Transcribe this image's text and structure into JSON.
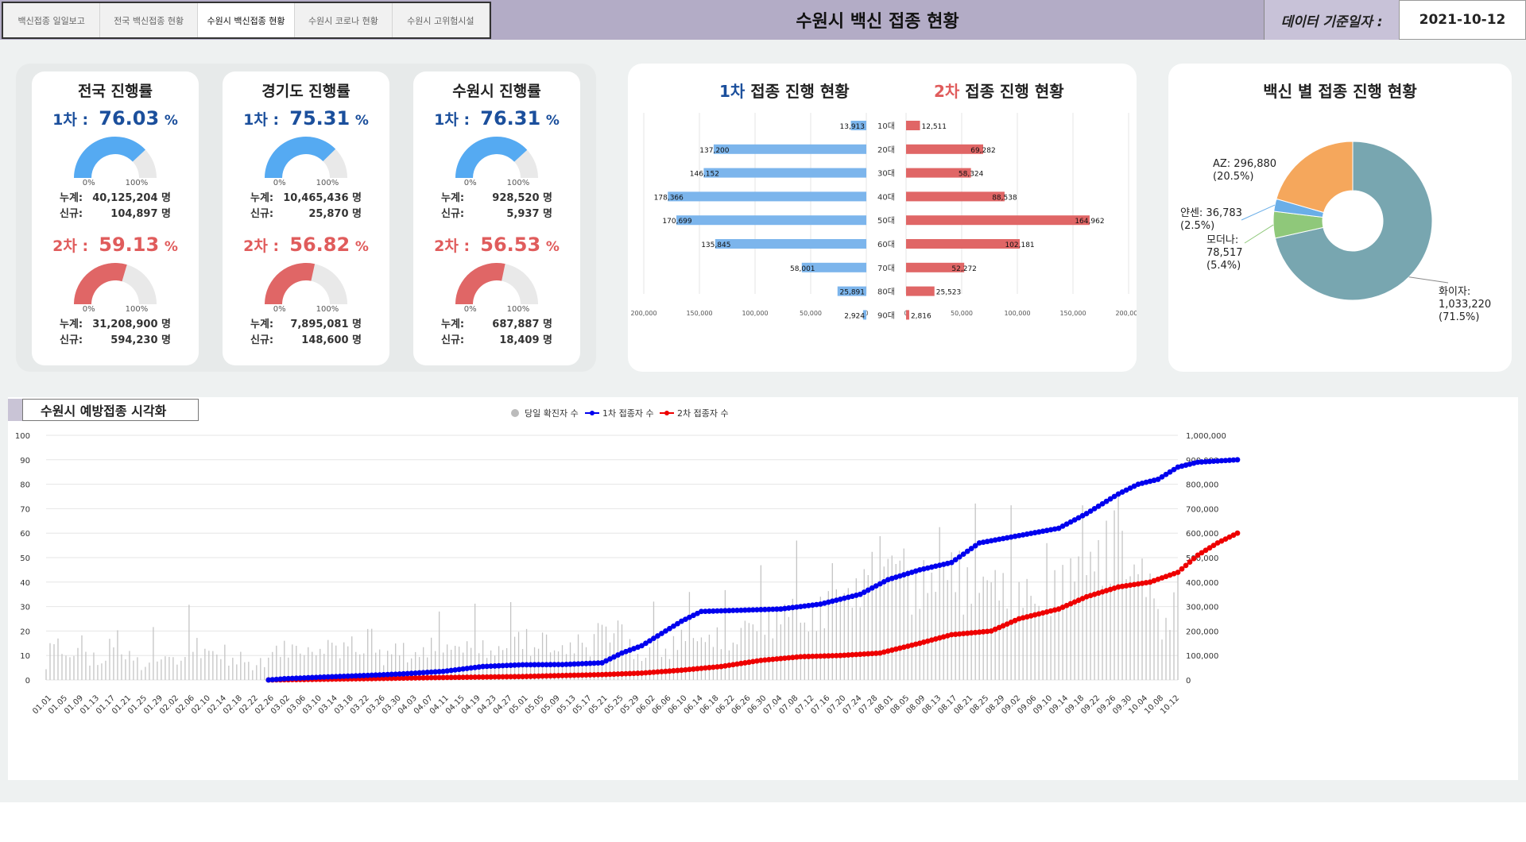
{
  "tabs": [
    "백신접종 일일보고",
    "전국 백신접종 현황",
    "수원시 백신접종 현황",
    "수원시 코로나 현황",
    "수원시 고위험시설"
  ],
  "active_tab": 2,
  "title": "수원시 백신 접종 현황",
  "date_label": "데이터 기준일자 :",
  "date_value": "2021-10-12",
  "colors": {
    "blue": "#1b4f9c",
    "red": "#e05c5c",
    "orange": "#f26a1b",
    "gauge_blue": "#55aaf2",
    "gauge_red": "#e06666"
  },
  "cards": [
    {
      "title": "전국 진행률",
      "first_label": "1차 :",
      "first_rate": "76.03",
      "second_label": "2차 :",
      "second_rate": "59.13",
      "pct": "%",
      "g0": "0%",
      "g100": "100%",
      "first_total_label": "누계:",
      "first_total": "40,125,204 명",
      "first_new_label": "신규:",
      "first_new": "104,897 명",
      "second_total_label": "누계:",
      "second_total": "31,208,900 명",
      "second_new_label": "신규:",
      "second_new": "594,230 명"
    },
    {
      "title": "경기도 진행률",
      "first_label": "1차 :",
      "first_rate": "75.31",
      "second_label": "2차 :",
      "second_rate": "56.82",
      "pct": "%",
      "g0": "0%",
      "g100": "100%",
      "first_total_label": "누계:",
      "first_total": "10,465,436 명",
      "first_new_label": "신규:",
      "first_new": "25,870 명",
      "second_total_label": "누계:",
      "second_total": "7,895,081 명",
      "second_new_label": "신규:",
      "second_new": "148,600 명"
    },
    {
      "title": "수원시 진행률",
      "first_label": "1차 :",
      "first_rate": "76.31",
      "second_label": "2차 :",
      "second_rate": "56.53",
      "pct": "%",
      "g0": "0%",
      "g100": "100%",
      "first_total_label": "누계:",
      "first_total": "928,520 명",
      "first_new_label": "신규:",
      "first_new": "5,937 명",
      "second_total_label": "누계:",
      "second_total": "687,887 명",
      "second_new_label": "신규:",
      "second_new": "18,409 명"
    }
  ],
  "pyramid": {
    "title1_a": "1차",
    "title1_b": " 접종 진행 현황",
    "title2_a": "2차",
    "title2_b": " 접종 진행 현황",
    "ages": [
      "10대",
      "20대",
      "30대",
      "40대",
      "50대",
      "60대",
      "70대",
      "80대",
      "90대"
    ],
    "first": [
      13913,
      137200,
      146152,
      178366,
      170699,
      135845,
      58001,
      25891,
      2924
    ],
    "second": [
      12511,
      69282,
      58324,
      88538,
      164962,
      102181,
      52272,
      25523,
      2816
    ],
    "first_labels": [
      "13,913",
      "137,200",
      "146,152",
      "178,366",
      "170,699",
      "135,845",
      "58,001",
      "25,891",
      "2,924"
    ],
    "second_labels": [
      "12,511",
      "69,282",
      "58,324",
      "88,538",
      "164,962",
      "102,181",
      "52,272",
      "25,523",
      "2,816"
    ],
    "axis_left": [
      "200,000",
      "150,000",
      "100,000",
      "50,000",
      "0"
    ],
    "axis_right": [
      "0",
      "50,000",
      "100,000",
      "150,000",
      "200,000"
    ]
  },
  "donut": {
    "title": "백신 별 접종 진행 현황",
    "slices": [
      {
        "name": "화이자",
        "value": 1033220,
        "label": [
          "화이자:",
          "1,033,220",
          "(71.5%)"
        ],
        "color": "#78a6b0"
      },
      {
        "name": "모더나",
        "value": 78517,
        "label": [
          "모더나:",
          "78,517",
          "(5.4%)"
        ],
        "color": "#8fc87a"
      },
      {
        "name": "얀센",
        "value": 36783,
        "label": [
          "얀센: 36,783",
          "(2.5%)"
        ],
        "color": "#6aaee8"
      },
      {
        "name": "AZ",
        "value": 296880,
        "label": [
          "AZ: 296,880",
          "(20.5%)"
        ],
        "color": "#f5a75c"
      }
    ]
  },
  "chart_data": {
    "type": "line",
    "title": "수원시 예방접종 시각화",
    "legend": [
      "당일 확진자 수",
      "1차 접종자 수",
      "2차 접종자 수"
    ],
    "x_ticks": [
      "01.01",
      "01.05",
      "01.09",
      "01.13",
      "01.17",
      "01.21",
      "01.25",
      "01.29",
      "02.02",
      "02.06",
      "02.10",
      "02.14",
      "02.18",
      "02.22",
      "02.26",
      "03.02",
      "03.06",
      "03.10",
      "03.14",
      "03.18",
      "03.22",
      "03.26",
      "03.30",
      "04.03",
      "04.07",
      "04.11",
      "04.15",
      "04.19",
      "04.23",
      "04.27",
      "05.01",
      "05.05",
      "05.09",
      "05.13",
      "05.17",
      "05.21",
      "05.25",
      "05.29",
      "06.02",
      "06.06",
      "06.10",
      "06.14",
      "06.18",
      "06.22",
      "06.26",
      "06.30",
      "07.04",
      "07.08",
      "07.12",
      "07.16",
      "07.20",
      "07.24",
      "07.28",
      "08.01",
      "08.05",
      "08.09",
      "08.13",
      "08.17",
      "08.21",
      "08.25",
      "08.29",
      "09.02",
      "09.06",
      "09.10",
      "09.14",
      "09.18",
      "09.22",
      "09.26",
      "09.30",
      "10.04",
      "10.08",
      "10.12"
    ],
    "y_left": [
      0,
      10,
      20,
      30,
      40,
      50,
      60,
      70,
      80,
      90,
      100
    ],
    "y_right": [
      "0",
      "100,000",
      "200,000",
      "300,000",
      "400,000",
      "500,000",
      "600,000",
      "700,000",
      "800,000",
      "900,000",
      "1,000,000"
    ],
    "ylim_left": [
      0,
      100
    ],
    "ylim_right": [
      0,
      1000000
    ],
    "cases_daily_anchor": [
      5,
      23,
      15,
      10,
      12,
      16,
      9,
      12,
      6,
      18,
      15,
      10,
      13,
      9,
      5,
      15,
      8,
      12,
      10,
      7,
      19,
      20,
      12,
      15,
      12,
      10,
      8,
      11,
      12,
      5,
      7,
      6,
      15,
      14,
      17,
      14,
      11,
      15,
      12,
      14,
      17,
      14,
      15,
      21,
      12,
      12,
      22,
      13,
      10,
      17,
      13,
      8,
      12,
      13,
      15,
      20,
      16,
      15,
      16,
      14,
      19,
      20,
      15,
      12,
      15,
      14,
      25,
      19,
      21,
      13,
      22,
      12,
      14,
      15,
      15,
      20,
      14,
      13,
      28,
      25,
      18,
      24,
      21,
      13,
      10,
      10,
      26,
      13,
      13,
      20,
      21,
      24,
      18,
      20,
      19,
      22,
      23,
      15,
      21,
      30,
      24,
      30,
      29,
      29,
      33,
      32,
      42,
      23,
      30,
      35,
      33,
      40,
      40,
      42,
      39,
      46,
      45,
      55,
      62,
      55,
      60,
      48,
      45,
      44,
      50,
      48,
      42,
      52,
      54,
      54,
      46,
      47,
      46,
      47,
      49,
      43,
      48,
      40,
      41,
      45,
      33,
      35,
      38,
      50,
      46,
      52,
      55,
      50,
      60,
      58,
      66,
      70,
      67,
      45,
      55,
      52,
      45,
      30,
      25,
      28,
      52
    ],
    "first_series": {
      "start": "02.26",
      "end": "10.12",
      "anchors": [
        [
          56,
          0
        ],
        [
          60,
          5000
        ],
        [
          70,
          12000
        ],
        [
          80,
          18000
        ],
        [
          90,
          25000
        ],
        [
          100,
          35000
        ],
        [
          110,
          55000
        ],
        [
          120,
          62000
        ],
        [
          130,
          63000
        ],
        [
          140,
          70000
        ],
        [
          145,
          110000
        ],
        [
          150,
          140000
        ],
        [
          155,
          190000
        ],
        [
          160,
          240000
        ],
        [
          165,
          280000
        ],
        [
          175,
          285000
        ],
        [
          185,
          290000
        ],
        [
          195,
          310000
        ],
        [
          205,
          350000
        ],
        [
          212,
          410000
        ],
        [
          220,
          450000
        ],
        [
          228,
          480000
        ],
        [
          235,
          560000
        ],
        [
          245,
          590000
        ],
        [
          255,
          620000
        ],
        [
          262,
          680000
        ],
        [
          270,
          760000
        ],
        [
          275,
          800000
        ],
        [
          280,
          820000
        ],
        [
          285,
          870000
        ],
        [
          290,
          890000
        ],
        [
          295,
          895000
        ],
        [
          300,
          900000
        ]
      ]
    },
    "second_series": {
      "start": "02.26",
      "end": "10.12",
      "anchors": [
        [
          56,
          0
        ],
        [
          80,
          5000
        ],
        [
          100,
          10000
        ],
        [
          120,
          14000
        ],
        [
          140,
          22000
        ],
        [
          150,
          28000
        ],
        [
          160,
          40000
        ],
        [
          170,
          55000
        ],
        [
          180,
          80000
        ],
        [
          190,
          95000
        ],
        [
          200,
          100000
        ],
        [
          210,
          110000
        ],
        [
          220,
          150000
        ],
        [
          228,
          185000
        ],
        [
          238,
          200000
        ],
        [
          245,
          250000
        ],
        [
          255,
          290000
        ],
        [
          262,
          340000
        ],
        [
          270,
          380000
        ],
        [
          278,
          400000
        ],
        [
          285,
          440000
        ],
        [
          290,
          510000
        ],
        [
          295,
          560000
        ],
        [
          300,
          600000
        ]
      ]
    }
  }
}
